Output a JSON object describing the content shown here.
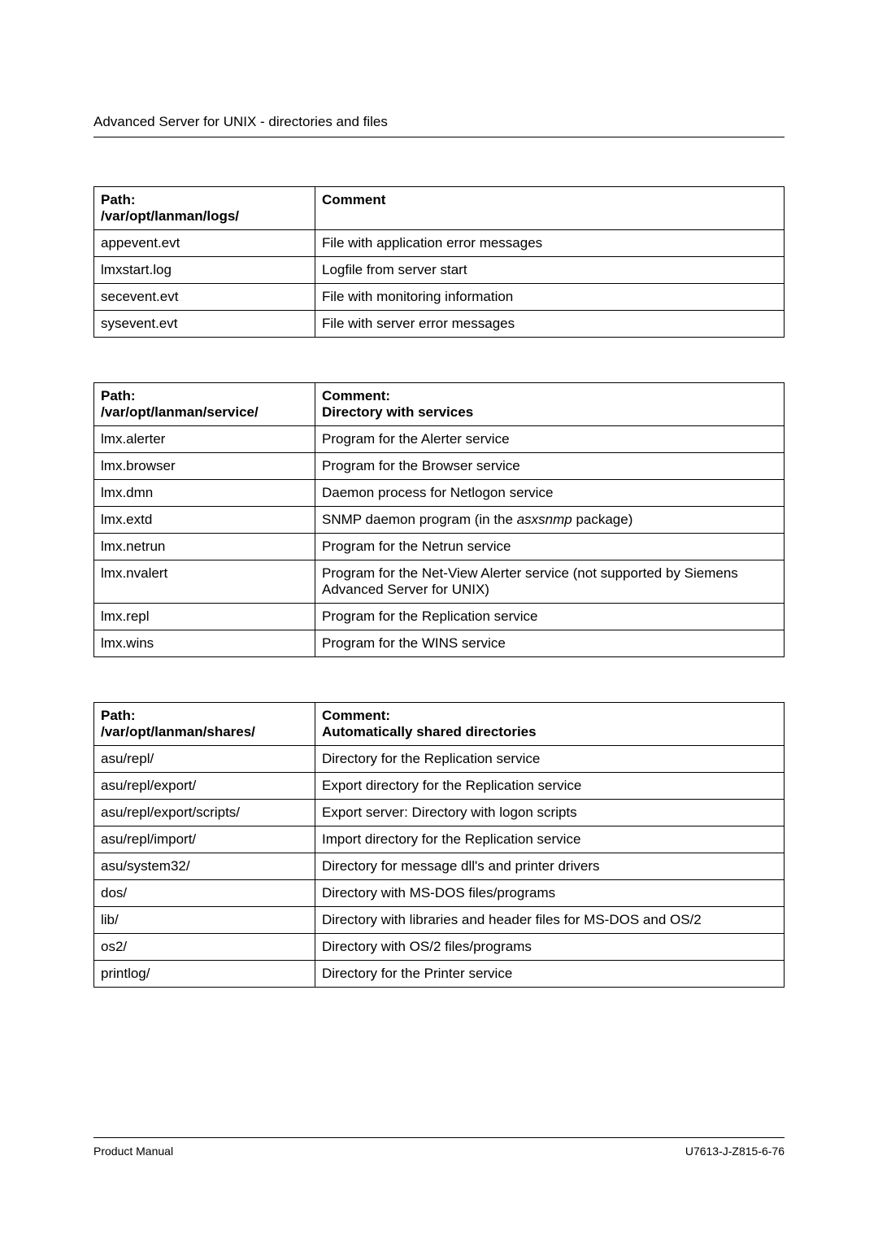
{
  "page_header": "Advanced Server for UNIX - directories and files",
  "tables": {
    "logs": {
      "col_path_label": "Path:",
      "col_path_sub": "/var/opt/lanman/logs/",
      "col_comment_label": "Comment",
      "rows": [
        {
          "file": "appevent.evt",
          "comment": "File with application error messages"
        },
        {
          "file": "lmxstart.log",
          "comment": "Logfile from server start"
        },
        {
          "file": "secevent.evt",
          "comment": "File with monitoring information"
        },
        {
          "file": "sysevent.evt",
          "comment": "File with server error messages"
        }
      ]
    },
    "service": {
      "col_path_label": "Path:",
      "col_path_sub": "/var/opt/lanman/service/",
      "col_comment_label": "Comment:",
      "col_comment_sub": "Directory with services",
      "rows": [
        {
          "file": "lmx.alerter",
          "comment": "Program for the Alerter service"
        },
        {
          "file": "lmx.browser",
          "comment": "Program for the Browser service"
        },
        {
          "file": "lmx.dmn",
          "comment": "Daemon process for Netlogon service"
        },
        {
          "file": "lmx.extd",
          "comment_pre": "SNMP daemon program (in the ",
          "comment_em": "asxsnmp",
          "comment_post": " package)"
        },
        {
          "file": "lmx.netrun",
          "comment": "Program for the Netrun service"
        },
        {
          "file": "lmx.nvalert",
          "comment": "Program for the Net-View Alerter service (not supported by Siemens Advanced Server for UNIX)"
        },
        {
          "file": "lmx.repl",
          "comment": "Program for the Replication service"
        },
        {
          "file": "lmx.wins",
          "comment": "Program for the WINS service"
        }
      ]
    },
    "shares": {
      "col_path_label": "Path:",
      "col_path_sub": "/var/opt/lanman/shares/",
      "col_comment_label": "Comment:",
      "col_comment_sub": "Automatically shared directories",
      "rows": [
        {
          "file": "asu/repl/",
          "comment": "Directory for the Replication service"
        },
        {
          "file": "asu/repl/export/",
          "comment": "Export directory for the Replication service"
        },
        {
          "file": "asu/repl/export/scripts/",
          "comment": "Export server: Directory with logon scripts"
        },
        {
          "file": "asu/repl/import/",
          "comment": "Import directory for the Replication service"
        },
        {
          "file": "asu/system32/",
          "comment": "Directory for message dll's and printer drivers"
        },
        {
          "file": "dos/",
          "comment": "Directory with MS-DOS files/programs"
        },
        {
          "file": "lib/",
          "comment": "Directory with libraries and header files for MS-DOS and OS/2"
        },
        {
          "file": "os2/",
          "comment": "Directory with OS/2 files/programs"
        },
        {
          "file": "printlog/",
          "comment": "Directory for the Printer service"
        }
      ]
    }
  },
  "footer_left": "Product Manual",
  "footer_right": "U7613-J-Z815-6-76"
}
